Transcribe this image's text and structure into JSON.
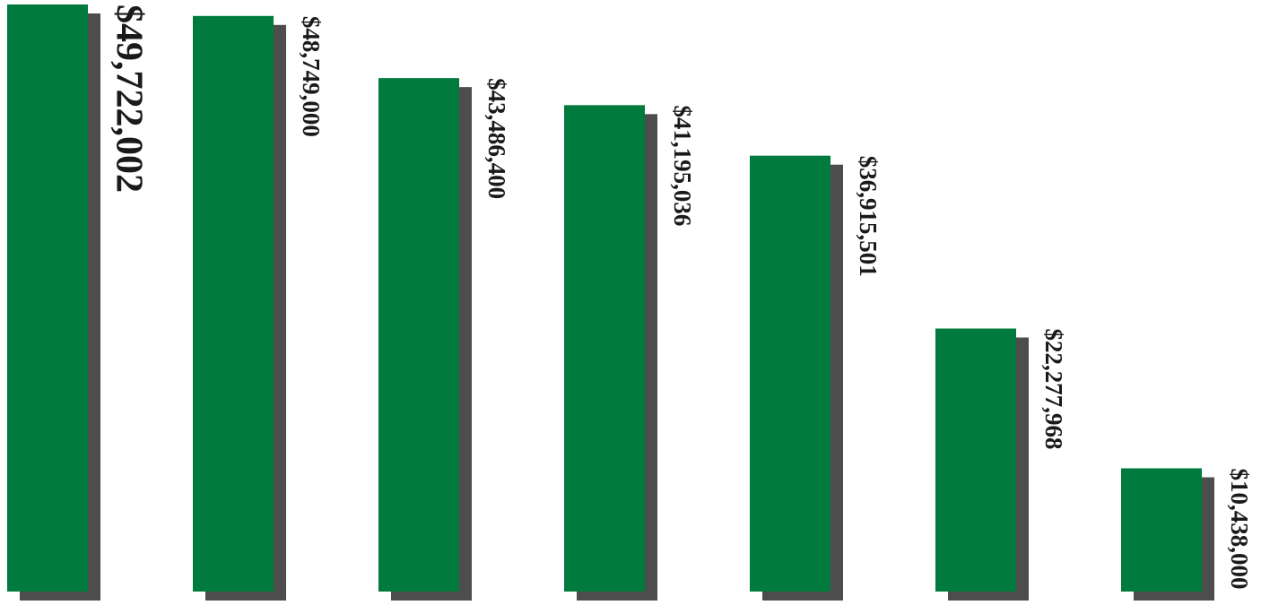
{
  "chart_data": {
    "type": "bar",
    "categories": [
      null,
      null,
      null,
      null,
      null,
      null,
      null
    ],
    "values": [
      49722002,
      48749000,
      43486400,
      41195036,
      36915501,
      22277968,
      10438000
    ],
    "value_labels": [
      "$49,722,002",
      "$48,749,000",
      "$43,486,400",
      "$41,195,036",
      "$36,915,501",
      "$22,277,968",
      "$10,438,000"
    ],
    "color": "#007a3d"
  }
}
